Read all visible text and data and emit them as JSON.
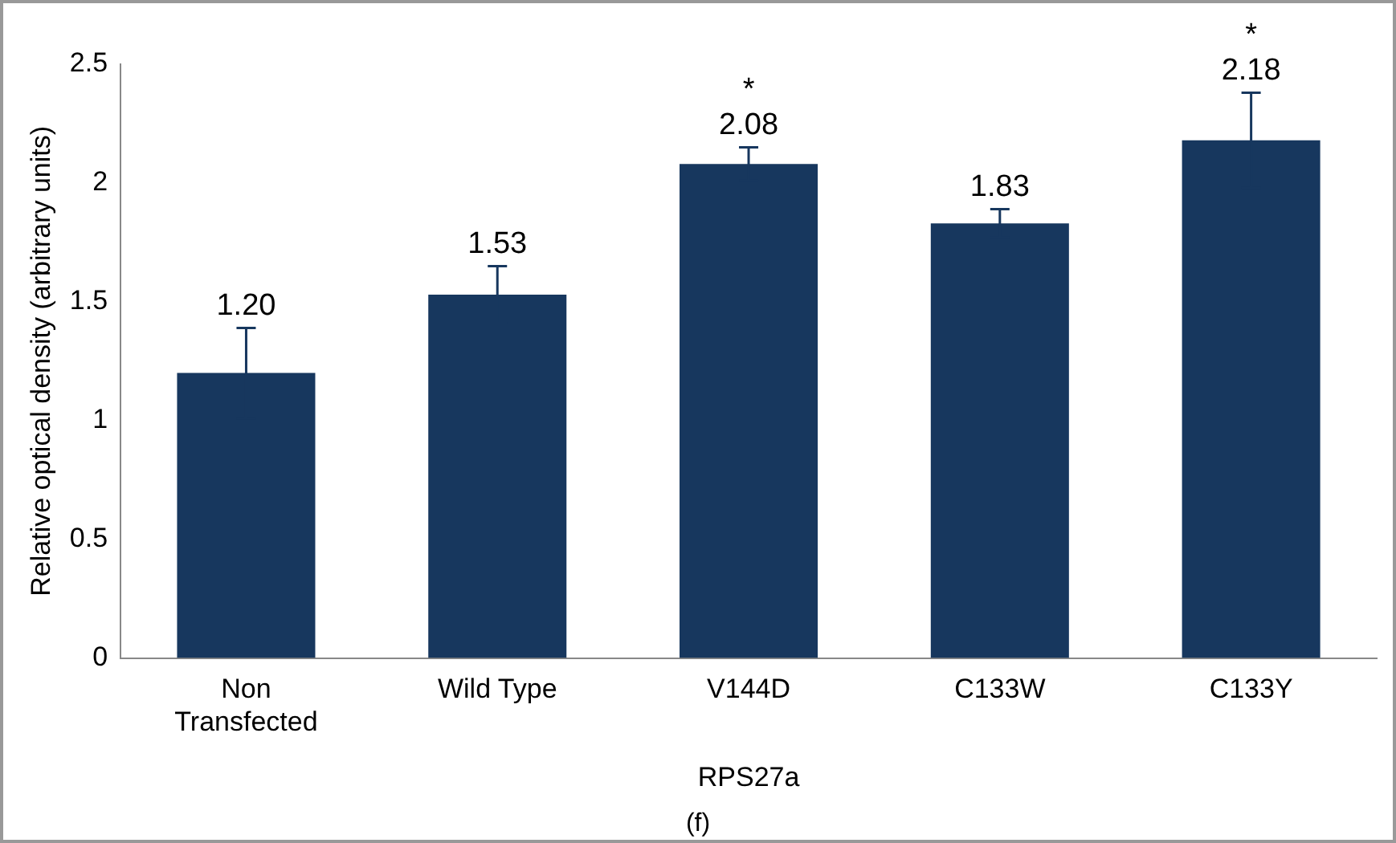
{
  "chart_data": {
    "type": "bar",
    "xlabel": "RPS27a",
    "ylabel": "Relative optical density (arbitrary units)",
    "categories": [
      "Non Transfected",
      "Wild Type",
      "V144D",
      "C133W",
      "C133Y"
    ],
    "values": [
      1.2,
      1.53,
      2.08,
      1.83,
      2.18
    ],
    "value_labels": [
      "1.20",
      "1.53",
      "2.08",
      "1.83",
      "2.18"
    ],
    "errors": [
      0.19,
      0.12,
      0.07,
      0.06,
      0.2
    ],
    "color": "#17375e",
    "ylim": [
      0,
      2.5
    ],
    "yticks": [
      0,
      0.5,
      1,
      1.5,
      2,
      2.5
    ],
    "grid": false,
    "legend": false,
    "annotations": [
      {
        "text": "*",
        "x": "V144D",
        "y": 2.08
      },
      {
        "text": "*",
        "x": "C133Y",
        "y": 2.18
      },
      "(f)"
    ]
  }
}
